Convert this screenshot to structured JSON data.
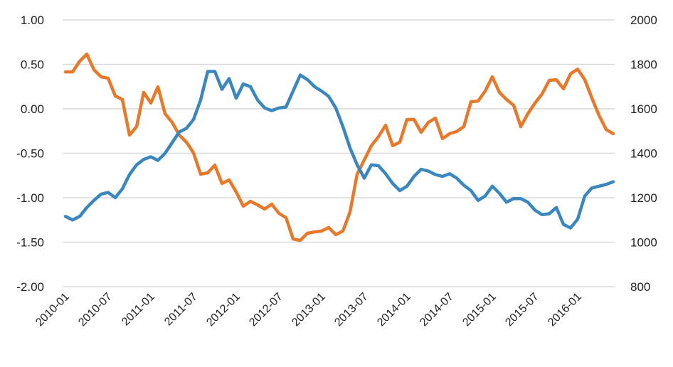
{
  "chart_data": {
    "type": "line",
    "title": "",
    "xlabel": "",
    "ylabel": "",
    "y2label": "",
    "grid": true,
    "legend": "none",
    "x_tick_labels": [
      "2010-01",
      "2010-07",
      "2011-01",
      "2011-07",
      "2012-01",
      "2012-07",
      "2013-01",
      "2013-07",
      "2014-01",
      "2014-07",
      "2015-01",
      "2015-07",
      "2016-01"
    ],
    "y_left": {
      "ylim": [
        -2.0,
        1.0
      ],
      "ticks": [
        "1.00",
        "0.50",
        "0.00",
        "-0.50",
        "-1.00",
        "-1.50",
        "-2.00"
      ]
    },
    "y_right": {
      "ylim": [
        800,
        2000
      ],
      "ticks": [
        "2000",
        "1800",
        "1600",
        "1400",
        "1200",
        "1000",
        "800"
      ]
    },
    "x": [
      "2010-01",
      "2010-02",
      "2010-03",
      "2010-04",
      "2010-05",
      "2010-06",
      "2010-07",
      "2010-08",
      "2010-09",
      "2010-10",
      "2010-11",
      "2010-12",
      "2011-01",
      "2011-02",
      "2011-03",
      "2011-04",
      "2011-05",
      "2011-06",
      "2011-07",
      "2011-08",
      "2011-09",
      "2011-10",
      "2011-11",
      "2011-12",
      "2012-01",
      "2012-02",
      "2012-03",
      "2012-04",
      "2012-05",
      "2012-06",
      "2012-07",
      "2012-08",
      "2012-09",
      "2012-10",
      "2012-11",
      "2012-12",
      "2013-01",
      "2013-02",
      "2013-03",
      "2013-04",
      "2013-05",
      "2013-06",
      "2013-07",
      "2013-08",
      "2013-09",
      "2013-10",
      "2013-11",
      "2013-12",
      "2014-01",
      "2014-02",
      "2014-03",
      "2014-04",
      "2014-05",
      "2014-06",
      "2014-07",
      "2014-08",
      "2014-09",
      "2014-10",
      "2014-11",
      "2014-12",
      "2015-01",
      "2015-02",
      "2015-03",
      "2015-04",
      "2015-05",
      "2015-06",
      "2015-07",
      "2015-08",
      "2015-09",
      "2015-10",
      "2015-11",
      "2015-12",
      "2016-01",
      "2016-02",
      "2016-03",
      "2016-04",
      "2016-05",
      "2016-06"
    ],
    "series": [
      {
        "name": "Blue series (left axis)",
        "axis": "left",
        "color": "#3a87c0",
        "values": [
          -1.21,
          -1.25,
          -1.21,
          -1.11,
          -1.03,
          -0.96,
          -0.94,
          -1.0,
          -0.9,
          -0.74,
          -0.63,
          -0.57,
          -0.54,
          -0.58,
          -0.5,
          -0.38,
          -0.26,
          -0.22,
          -0.12,
          0.1,
          0.42,
          0.42,
          0.22,
          0.34,
          0.12,
          0.28,
          0.25,
          0.1,
          0.01,
          -0.02,
          0.01,
          0.02,
          0.2,
          0.38,
          0.33,
          0.25,
          0.2,
          0.14,
          0.01,
          -0.2,
          -0.44,
          -0.63,
          -0.78,
          -0.63,
          -0.64,
          -0.73,
          -0.84,
          -0.92,
          -0.87,
          -0.76,
          -0.68,
          -0.7,
          -0.74,
          -0.76,
          -0.73,
          -0.78,
          -0.86,
          -0.92,
          -1.03,
          -0.98,
          -0.87,
          -0.95,
          -1.05,
          -1.01,
          -1.01,
          -1.05,
          -1.14,
          -1.19,
          -1.18,
          -1.11,
          -1.3,
          -1.34,
          -1.24,
          -0.98,
          -0.89,
          -0.87,
          -0.85,
          -0.82
        ]
      },
      {
        "name": "Orange series (right axis)",
        "axis": "right",
        "color": "#e8782a",
        "values": [
          1766,
          1766,
          1814,
          1846,
          1776,
          1744,
          1738,
          1658,
          1642,
          1482,
          1520,
          1674,
          1626,
          1699,
          1578,
          1539,
          1482,
          1450,
          1402,
          1306,
          1312,
          1347,
          1264,
          1280,
          1226,
          1162,
          1184,
          1168,
          1149,
          1171,
          1130,
          1110,
          1014,
          1008,
          1040,
          1046,
          1050,
          1066,
          1034,
          1050,
          1136,
          1306,
          1370,
          1434,
          1475,
          1526,
          1434,
          1450,
          1552,
          1552,
          1494,
          1539,
          1558,
          1466,
          1488,
          1498,
          1520,
          1632,
          1635,
          1680,
          1744,
          1674,
          1642,
          1616,
          1520,
          1578,
          1626,
          1667,
          1728,
          1731,
          1690,
          1757,
          1779,
          1731,
          1648,
          1571,
          1507,
          1488
        ]
      }
    ]
  }
}
